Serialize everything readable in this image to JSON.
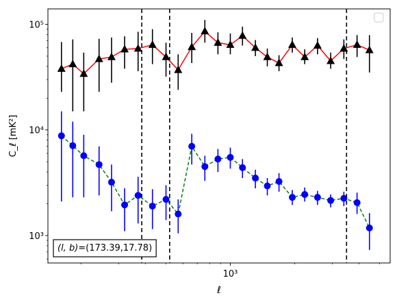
{
  "chart_data": {
    "type": "scatter",
    "xscale": "log",
    "yscale": "log",
    "xlabel": "ℓ",
    "ylabel": "C_ℓ  [mK²]",
    "xlim": [
      140,
      5600
    ],
    "ylim": [
      550,
      140000
    ],
    "xticks": [
      {
        "value": 1000,
        "label": "10³"
      }
    ],
    "yticks": [
      {
        "value": 1000,
        "label": "10³"
      },
      {
        "value": 10000,
        "label": "10⁴"
      },
      {
        "value": 100000,
        "label": "10⁵"
      }
    ],
    "legend": "upper right (empty)",
    "annotation": "(l, b)=(173.39,17.78)",
    "annotation_parts": {
      "lhs": "(l, b)",
      "rhs": "=(173.39,17.78)"
    },
    "vlines": [
      385,
      520,
      3500
    ],
    "series": [
      {
        "marker": "triangle",
        "color": "#000000",
        "line_color": "#ff0000",
        "line_style": "solid",
        "points": [
          {
            "x": 162,
            "y": 38000,
            "lo": 23000,
            "hi": 68000
          },
          {
            "x": 183,
            "y": 42000,
            "lo": 15000,
            "hi": 72000
          },
          {
            "x": 206,
            "y": 34000,
            "lo": 15000,
            "hi": 54000
          },
          {
            "x": 243,
            "y": 47000,
            "lo": 23000,
            "hi": 73000
          },
          {
            "x": 278,
            "y": 49000,
            "lo": 28000,
            "hi": 75000
          },
          {
            "x": 320,
            "y": 58000,
            "lo": 38000,
            "hi": 77000
          },
          {
            "x": 370,
            "y": 59000,
            "lo": 36000,
            "hi": 85000
          },
          {
            "x": 432,
            "y": 64000,
            "lo": 42000,
            "hi": 90000
          },
          {
            "x": 500,
            "y": 49000,
            "lo": 32000,
            "hi": 67000
          },
          {
            "x": 570,
            "y": 37000,
            "lo": 24000,
            "hi": 52000
          },
          {
            "x": 660,
            "y": 61000,
            "lo": 43000,
            "hi": 83000
          },
          {
            "x": 760,
            "y": 86000,
            "lo": 67000,
            "hi": 110000
          },
          {
            "x": 875,
            "y": 67000,
            "lo": 52000,
            "hi": 84000
          },
          {
            "x": 1000,
            "y": 64000,
            "lo": 52000,
            "hi": 82000
          },
          {
            "x": 1140,
            "y": 78000,
            "lo": 63000,
            "hi": 95000
          },
          {
            "x": 1310,
            "y": 60000,
            "lo": 50000,
            "hi": 71000
          },
          {
            "x": 1490,
            "y": 49000,
            "lo": 40000,
            "hi": 59000
          },
          {
            "x": 1690,
            "y": 43000,
            "lo": 36000,
            "hi": 51000
          },
          {
            "x": 1950,
            "y": 64000,
            "lo": 54000,
            "hi": 75000
          },
          {
            "x": 2230,
            "y": 49000,
            "lo": 42000,
            "hi": 58000
          },
          {
            "x": 2560,
            "y": 63000,
            "lo": 52000,
            "hi": 74000
          },
          {
            "x": 2950,
            "y": 45000,
            "lo": 38000,
            "hi": 54000
          },
          {
            "x": 3400,
            "y": 59000,
            "lo": 47000,
            "hi": 72000
          },
          {
            "x": 3920,
            "y": 64000,
            "lo": 49000,
            "hi": 79000
          },
          {
            "x": 4480,
            "y": 57000,
            "lo": 35000,
            "hi": 79000
          }
        ]
      },
      {
        "marker": "circle",
        "color": "#0000ff",
        "line_color": "#008000",
        "line_style": "dashed",
        "points": [
          {
            "x": 162,
            "y": 8800,
            "lo": 2100,
            "hi": 15000
          },
          {
            "x": 183,
            "y": 7100,
            "lo": 2300,
            "hi": 12000
          },
          {
            "x": 206,
            "y": 5700,
            "lo": 2300,
            "hi": 9000
          },
          {
            "x": 243,
            "y": 4700,
            "lo": 2400,
            "hi": 7000
          },
          {
            "x": 278,
            "y": 3200,
            "lo": 1700,
            "hi": 4700
          },
          {
            "x": 320,
            "y": 1950,
            "lo": 1100,
            "hi": 2800
          },
          {
            "x": 370,
            "y": 2400,
            "lo": 1300,
            "hi": 3600
          },
          {
            "x": 432,
            "y": 1900,
            "lo": 1150,
            "hi": 2750
          },
          {
            "x": 500,
            "y": 2200,
            "lo": 1400,
            "hi": 3000
          },
          {
            "x": 570,
            "y": 1600,
            "lo": 1050,
            "hi": 2200
          },
          {
            "x": 660,
            "y": 7000,
            "lo": 4700,
            "hi": 9200
          },
          {
            "x": 760,
            "y": 4500,
            "lo": 3300,
            "hi": 5700
          },
          {
            "x": 875,
            "y": 5300,
            "lo": 4000,
            "hi": 6600
          },
          {
            "x": 1000,
            "y": 5500,
            "lo": 4300,
            "hi": 6800
          },
          {
            "x": 1140,
            "y": 4400,
            "lo": 3500,
            "hi": 5300
          },
          {
            "x": 1310,
            "y": 3500,
            "lo": 2800,
            "hi": 4200
          },
          {
            "x": 1490,
            "y": 2950,
            "lo": 2400,
            "hi": 3500
          },
          {
            "x": 1690,
            "y": 3250,
            "lo": 2600,
            "hi": 3900
          },
          {
            "x": 1950,
            "y": 2300,
            "lo": 1950,
            "hi": 2700
          },
          {
            "x": 2230,
            "y": 2450,
            "lo": 2100,
            "hi": 2850
          },
          {
            "x": 2560,
            "y": 2300,
            "lo": 1950,
            "hi": 2650
          },
          {
            "x": 2950,
            "y": 2150,
            "lo": 1850,
            "hi": 2450
          },
          {
            "x": 3400,
            "y": 2250,
            "lo": 1900,
            "hi": 2600
          },
          {
            "x": 3920,
            "y": 2050,
            "lo": 1600,
            "hi": 2550
          },
          {
            "x": 4480,
            "y": 1180,
            "lo": 730,
            "hi": 1630
          }
        ]
      }
    ]
  }
}
